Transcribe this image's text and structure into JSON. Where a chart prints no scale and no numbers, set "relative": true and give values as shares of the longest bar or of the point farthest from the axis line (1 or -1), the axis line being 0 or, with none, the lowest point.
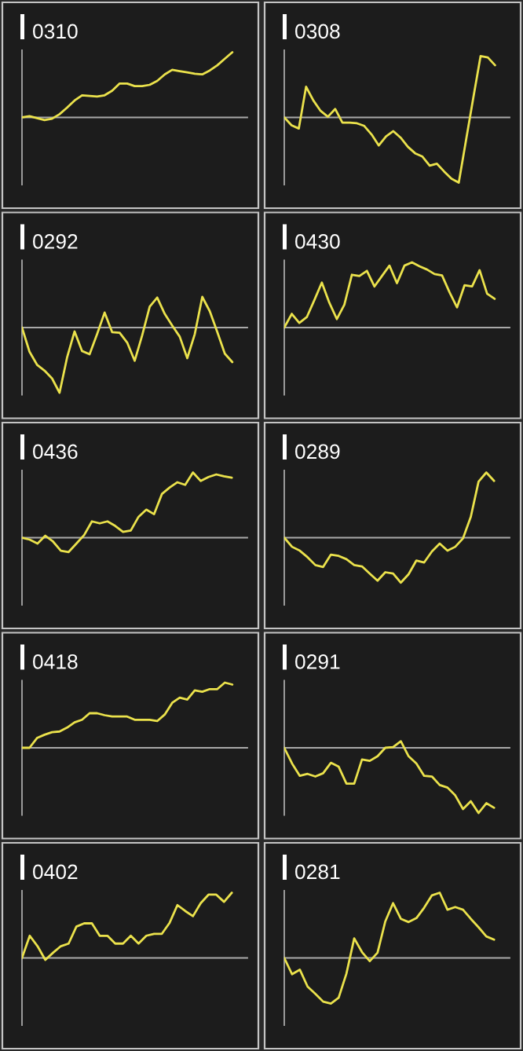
{
  "chart_data": [
    {
      "type": "line",
      "title": "0310",
      "relative": true,
      "categories": [
        null,
        null,
        null,
        null,
        null,
        null,
        null,
        null,
        null,
        null,
        null,
        null,
        null,
        null,
        null,
        null,
        null,
        null,
        null,
        null,
        null,
        null,
        null,
        null,
        null,
        null,
        null,
        null,
        null
      ],
      "series": [
        {
          "color": "#ebe24c",
          "values": [
            0,
            0.02,
            -0.01,
            -0.04,
            -0.02,
            0.05,
            0.15,
            0.26,
            0.34,
            0.33,
            0.32,
            0.34,
            0.41,
            0.52,
            0.52,
            0.48,
            0.48,
            0.5,
            0.56,
            0.66,
            0.73,
            0.71,
            0.69,
            0.67,
            0.66,
            0.72,
            0.8,
            0.9,
            1
          ]
        }
      ]
    },
    {
      "type": "line",
      "title": "0308",
      "relative": true,
      "categories": [
        null,
        null,
        null,
        null,
        null,
        null,
        null,
        null,
        null,
        null,
        null,
        null,
        null,
        null,
        null,
        null,
        null,
        null,
        null,
        null,
        null,
        null,
        null,
        null,
        null,
        null,
        null,
        null,
        null,
        null
      ],
      "series": [
        {
          "color": "#ebe24c",
          "values": [
            0,
            -0.12,
            -0.17,
            0.47,
            0.26,
            0.1,
            0.01,
            0.13,
            -0.08,
            -0.08,
            -0.09,
            -0.13,
            -0.26,
            -0.43,
            -0.29,
            -0.21,
            -0.31,
            -0.45,
            -0.55,
            -0.6,
            -0.74,
            -0.71,
            -0.83,
            -0.94,
            -1,
            -0.35,
            0.3,
            0.94,
            0.92,
            0.8
          ]
        }
      ]
    },
    {
      "type": "line",
      "title": "0292",
      "relative": true,
      "categories": [
        null,
        null,
        null,
        null,
        null,
        null,
        null,
        null,
        null,
        null,
        null,
        null,
        null,
        null,
        null,
        null,
        null,
        null,
        null,
        null,
        null,
        null,
        null,
        null,
        null,
        null,
        null,
        null,
        null
      ],
      "series": [
        {
          "color": "#ebe24c",
          "values": [
            0,
            -0.37,
            -0.57,
            -0.66,
            -0.78,
            -1,
            -0.46,
            -0.06,
            -0.36,
            -0.41,
            -0.1,
            0.23,
            -0.07,
            -0.08,
            -0.23,
            -0.51,
            -0.12,
            0.32,
            0.46,
            0.21,
            0.03,
            -0.14,
            -0.47,
            -0.1,
            0.47,
            0.25,
            -0.07,
            -0.4,
            -0.53
          ]
        }
      ]
    },
    {
      "type": "line",
      "title": "0430",
      "relative": true,
      "categories": [
        null,
        null,
        null,
        null,
        null,
        null,
        null,
        null,
        null,
        null,
        null,
        null,
        null,
        null,
        null,
        null,
        null,
        null,
        null,
        null,
        null,
        null,
        null,
        null,
        null,
        null,
        null,
        null,
        null
      ],
      "series": [
        {
          "color": "#ebe24c",
          "values": [
            0,
            0.21,
            0.07,
            0.16,
            0.42,
            0.69,
            0.38,
            0.13,
            0.35,
            0.81,
            0.79,
            0.87,
            0.63,
            0.79,
            0.95,
            0.68,
            0.95,
            1,
            0.94,
            0.89,
            0.82,
            0.8,
            0.54,
            0.31,
            0.65,
            0.63,
            0.88,
            0.52,
            0.44
          ]
        }
      ]
    },
    {
      "type": "line",
      "title": "0436",
      "relative": true,
      "categories": [
        null,
        null,
        null,
        null,
        null,
        null,
        null,
        null,
        null,
        null,
        null,
        null,
        null,
        null,
        null,
        null,
        null,
        null,
        null,
        null,
        null,
        null,
        null,
        null,
        null,
        null,
        null,
        null
      ],
      "series": [
        {
          "color": "#ebe24c",
          "values": [
            0,
            -0.03,
            -0.09,
            0.03,
            -0.06,
            -0.2,
            -0.22,
            -0.09,
            0.04,
            0.25,
            0.22,
            0.25,
            0.18,
            0.09,
            0.11,
            0.32,
            0.43,
            0.36,
            0.67,
            0.77,
            0.85,
            0.81,
            1,
            0.87,
            0.93,
            0.97,
            0.94,
            0.92
          ]
        }
      ]
    },
    {
      "type": "line",
      "title": "0289",
      "relative": true,
      "categories": [
        null,
        null,
        null,
        null,
        null,
        null,
        null,
        null,
        null,
        null,
        null,
        null,
        null,
        null,
        null,
        null,
        null,
        null,
        null,
        null,
        null,
        null,
        null,
        null,
        null,
        null,
        null,
        null
      ],
      "series": [
        {
          "color": "#ebe24c",
          "values": [
            0,
            -0.14,
            -0.2,
            -0.3,
            -0.42,
            -0.45,
            -0.26,
            -0.28,
            -0.33,
            -0.42,
            -0.44,
            -0.55,
            -0.66,
            -0.53,
            -0.55,
            -0.69,
            -0.56,
            -0.35,
            -0.38,
            -0.21,
            -0.09,
            -0.2,
            -0.14,
            -0.01,
            0.32,
            0.86,
            1,
            0.87
          ]
        }
      ]
    },
    {
      "type": "line",
      "title": "0418",
      "relative": true,
      "categories": [
        null,
        null,
        null,
        null,
        null,
        null,
        null,
        null,
        null,
        null,
        null,
        null,
        null,
        null,
        null,
        null,
        null,
        null,
        null,
        null,
        null,
        null,
        null,
        null,
        null,
        null,
        null,
        null,
        null
      ],
      "series": [
        {
          "color": "#ebe24c",
          "values": [
            0,
            0,
            0.15,
            0.2,
            0.24,
            0.25,
            0.31,
            0.39,
            0.43,
            0.53,
            0.53,
            0.5,
            0.48,
            0.48,
            0.48,
            0.43,
            0.43,
            0.43,
            0.41,
            0.51,
            0.69,
            0.77,
            0.74,
            0.88,
            0.86,
            0.9,
            0.9,
            1,
            0.97
          ]
        }
      ]
    },
    {
      "type": "line",
      "title": "0291",
      "relative": true,
      "categories": [
        null,
        null,
        null,
        null,
        null,
        null,
        null,
        null,
        null,
        null,
        null,
        null,
        null,
        null,
        null,
        null,
        null,
        null,
        null,
        null,
        null,
        null,
        null,
        null,
        null,
        null,
        null,
        null
      ],
      "series": [
        {
          "color": "#ebe24c",
          "values": [
            0,
            -0.24,
            -0.43,
            -0.4,
            -0.44,
            -0.39,
            -0.23,
            -0.29,
            -0.55,
            -0.55,
            -0.18,
            -0.2,
            -0.13,
            0,
            0.01,
            0.1,
            -0.13,
            -0.24,
            -0.43,
            -0.44,
            -0.57,
            -0.61,
            -0.73,
            -0.94,
            -0.82,
            -1,
            -0.85,
            -0.92
          ]
        }
      ]
    },
    {
      "type": "line",
      "title": "0402",
      "relative": true,
      "categories": [
        null,
        null,
        null,
        null,
        null,
        null,
        null,
        null,
        null,
        null,
        null,
        null,
        null,
        null,
        null,
        null,
        null,
        null,
        null,
        null,
        null,
        null,
        null,
        null,
        null,
        null,
        null,
        null
      ],
      "series": [
        {
          "color": "#ebe24c",
          "values": [
            0,
            0.34,
            0.18,
            -0.03,
            0.08,
            0.18,
            0.22,
            0.48,
            0.53,
            0.53,
            0.34,
            0.34,
            0.22,
            0.22,
            0.34,
            0.22,
            0.34,
            0.37,
            0.37,
            0.54,
            0.81,
            0.72,
            0.64,
            0.84,
            0.97,
            0.97,
            0.86,
            1
          ]
        }
      ]
    },
    {
      "type": "line",
      "title": "0281",
      "relative": true,
      "categories": [
        null,
        null,
        null,
        null,
        null,
        null,
        null,
        null,
        null,
        null,
        null,
        null,
        null,
        null,
        null,
        null,
        null,
        null,
        null,
        null,
        null,
        null,
        null,
        null,
        null,
        null,
        null,
        null
      ],
      "series": [
        {
          "color": "#ebe24c",
          "values": [
            0,
            -0.25,
            -0.18,
            -0.44,
            -0.55,
            -0.67,
            -0.7,
            -0.61,
            -0.24,
            0.3,
            0.09,
            -0.05,
            0.08,
            0.56,
            0.84,
            0.6,
            0.55,
            0.61,
            0.77,
            0.96,
            1,
            0.74,
            0.78,
            0.74,
            0.6,
            0.47,
            0.33,
            0.28
          ]
        }
      ]
    }
  ]
}
